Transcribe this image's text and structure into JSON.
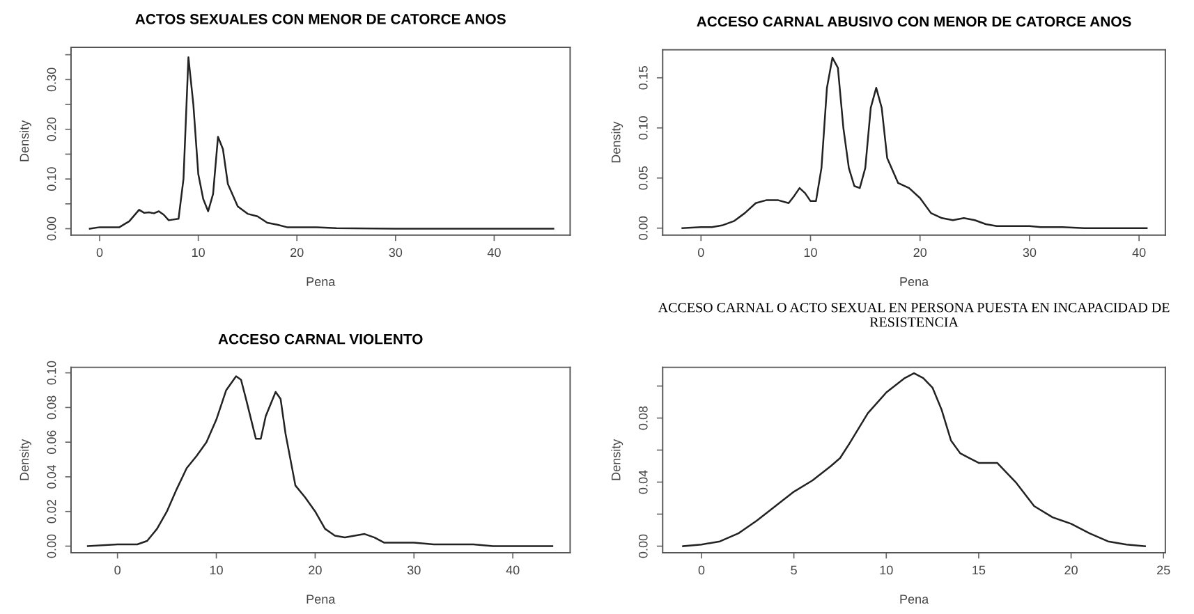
{
  "chart_data": [
    {
      "type": "line",
      "title": "ACTOS SEXUALES CON MENOR DE CATORCE ANOS",
      "xlabel": "Pena",
      "ylabel": "Density",
      "grid": false,
      "legend": false,
      "marker": "none",
      "line_style": "solid",
      "xlim": [
        -2.9,
        47.7
      ],
      "ylim": [
        -0.013,
        0.365
      ],
      "xticks": [
        0,
        10,
        20,
        30,
        40
      ],
      "yticks": [
        {
          "value": 0,
          "label": "0.00"
        },
        {
          "value": 0.05,
          "label": null
        },
        {
          "value": 0.1,
          "label": "0.10"
        },
        {
          "value": 0.15,
          "label": null
        },
        {
          "value": 0.2,
          "label": "0.20"
        },
        {
          "value": 0.25,
          "label": null
        },
        {
          "value": 0.3,
          "label": "0.30"
        },
        {
          "value": 0.35,
          "label": null
        }
      ],
      "series": [
        {
          "color": "#222222",
          "x": [
            -1,
            0,
            2,
            3,
            4,
            4.5,
            5,
            5.5,
            6,
            6.5,
            7,
            8,
            8.5,
            9,
            9.5,
            10,
            10.5,
            11,
            11.5,
            12,
            12.5,
            13,
            14,
            15,
            16,
            17,
            18,
            19,
            22,
            24,
            30,
            46
          ],
          "values": [
            0,
            0.003,
            0.003,
            0.015,
            0.038,
            0.032,
            0.033,
            0.031,
            0.035,
            0.028,
            0.017,
            0.02,
            0.1,
            0.345,
            0.25,
            0.11,
            0.06,
            0.035,
            0.07,
            0.185,
            0.16,
            0.09,
            0.045,
            0.03,
            0.025,
            0.012,
            0.008,
            0.003,
            0.003,
            0.001,
            0,
            0
          ]
        }
      ]
    },
    {
      "type": "line",
      "title": "ACCESO CARNAL ABUSIVO CON MENOR DE CATORCE ANOS",
      "xlabel": "Pena",
      "ylabel": "Density",
      "grid": false,
      "legend": false,
      "marker": "none",
      "line_style": "solid",
      "xlim": [
        -3.5,
        42.4
      ],
      "ylim": [
        -0.007,
        0.178
      ],
      "xticks": [
        0,
        10,
        20,
        30,
        40
      ],
      "yticks": [
        {
          "value": 0,
          "label": "0.00"
        },
        {
          "value": 0.05,
          "label": "0.05"
        },
        {
          "value": 0.1,
          "label": "0.10"
        },
        {
          "value": 0.15,
          "label": "0.15"
        }
      ],
      "series": [
        {
          "color": "#222222",
          "x": [
            -1.7,
            0,
            1,
            2,
            3,
            4,
            5,
            6,
            7,
            8,
            8.5,
            9,
            9.5,
            10,
            10.5,
            11,
            11.5,
            12,
            12.5,
            13,
            13.5,
            14,
            14.5,
            15,
            15.5,
            16,
            16.5,
            17,
            18,
            19,
            20,
            21,
            22,
            23,
            24,
            25,
            26,
            27,
            30,
            31,
            33,
            35,
            40.7
          ],
          "values": [
            0,
            0.001,
            0.001,
            0.003,
            0.007,
            0.015,
            0.025,
            0.028,
            0.028,
            0.025,
            0.032,
            0.04,
            0.035,
            0.027,
            0.027,
            0.06,
            0.14,
            0.17,
            0.16,
            0.1,
            0.06,
            0.042,
            0.04,
            0.06,
            0.12,
            0.14,
            0.12,
            0.07,
            0.045,
            0.04,
            0.03,
            0.015,
            0.01,
            0.008,
            0.01,
            0.008,
            0.004,
            0.002,
            0.002,
            0.001,
            0.001,
            0,
            0
          ]
        }
      ]
    },
    {
      "type": "line",
      "title": "ACCESO CARNAL VIOLENTO",
      "xlabel": "Pena",
      "ylabel": "Density",
      "grid": false,
      "legend": false,
      "marker": "none",
      "line_style": "solid",
      "xlim": [
        -4.7,
        45.8
      ],
      "ylim": [
        -0.0038,
        0.1032
      ],
      "xticks": [
        0,
        10,
        20,
        30,
        40
      ],
      "yticks": [
        {
          "value": 0,
          "label": "0.00"
        },
        {
          "value": 0.02,
          "label": "0.02"
        },
        {
          "value": 0.04,
          "label": "0.04"
        },
        {
          "value": 0.06,
          "label": "0.06"
        },
        {
          "value": 0.08,
          "label": "0.08"
        },
        {
          "value": 0.1,
          "label": "0.10"
        }
      ],
      "series": [
        {
          "color": "#222222",
          "x": [
            -3,
            0,
            2,
            3,
            4,
            5,
            6,
            7,
            8,
            9,
            10,
            11,
            12,
            12.5,
            13,
            14,
            14.5,
            15,
            16,
            16.5,
            17,
            18,
            19,
            20,
            21,
            22,
            23,
            24,
            25,
            26,
            27,
            30,
            32,
            36,
            38,
            44
          ],
          "values": [
            0,
            0.001,
            0.001,
            0.003,
            0.01,
            0.02,
            0.033,
            0.045,
            0.052,
            0.06,
            0.073,
            0.09,
            0.098,
            0.096,
            0.085,
            0.062,
            0.062,
            0.075,
            0.089,
            0.085,
            0.065,
            0.035,
            0.028,
            0.02,
            0.01,
            0.006,
            0.005,
            0.006,
            0.007,
            0.005,
            0.002,
            0.002,
            0.001,
            0.001,
            0,
            0
          ]
        }
      ]
    },
    {
      "type": "line",
      "title": "ACCESO CARNAL O ACTO SEXUAL EN PERSONA PUESTA EN INCAPACIDAD DE RESISTENCIA",
      "xlabel": "Pena",
      "ylabel": "Density",
      "grid": false,
      "legend": false,
      "marker": "none",
      "line_style": "solid",
      "xlim": [
        -2.1,
        25.1
      ],
      "ylim": [
        -0.0041,
        0.1117
      ],
      "xticks": [
        0,
        5,
        10,
        15,
        20,
        25
      ],
      "yticks": [
        {
          "value": 0,
          "label": "0.00"
        },
        {
          "value": 0.02,
          "label": null
        },
        {
          "value": 0.04,
          "label": "0.04"
        },
        {
          "value": 0.06,
          "label": null
        },
        {
          "value": 0.08,
          "label": "0.08"
        },
        {
          "value": 0.1,
          "label": null
        }
      ],
      "series": [
        {
          "color": "#222222",
          "x": [
            -1,
            0,
            1,
            2,
            3,
            4,
            5,
            6,
            7,
            7.5,
            8,
            9,
            10,
            11,
            11.5,
            12,
            12.5,
            13,
            13.5,
            14,
            14.5,
            15,
            16,
            17,
            18,
            19,
            20,
            21,
            22,
            23,
            24
          ],
          "values": [
            0,
            0.001,
            0.003,
            0.008,
            0.016,
            0.025,
            0.034,
            0.041,
            0.05,
            0.055,
            0.064,
            0.083,
            0.096,
            0.105,
            0.108,
            0.105,
            0.099,
            0.085,
            0.066,
            0.058,
            0.055,
            0.052,
            0.052,
            0.04,
            0.025,
            0.018,
            0.014,
            0.008,
            0.003,
            0.001,
            0
          ]
        }
      ]
    }
  ]
}
